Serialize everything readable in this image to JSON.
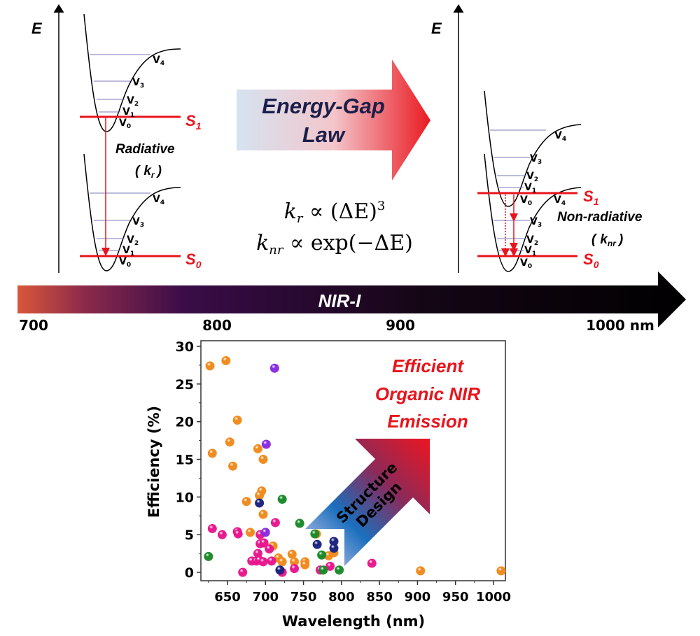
{
  "diagram": {
    "energy_axis_label": "E",
    "left_panel": {
      "levels": [
        "V",
        "V",
        "V",
        "V",
        "V"
      ],
      "level_subscripts": [
        "0",
        "1",
        "2",
        "3",
        "4"
      ],
      "s1_label": "S",
      "s1_sub": "1",
      "s0_label": "S",
      "s0_sub": "0",
      "process_label": "Radiative",
      "rate_open": "(",
      "rate_k": "k",
      "rate_sub": "r",
      "rate_close": ")"
    },
    "right_panel": {
      "s1_label": "S",
      "s1_sub": "1",
      "s0_label": "S",
      "s0_sub": "0",
      "process_label": "Non-radiative",
      "rate_open": "(",
      "rate_k": "k",
      "rate_sub": "nr",
      "rate_close": ")"
    },
    "big_arrow": {
      "line1": "Energy-Gap",
      "line2": "Law"
    },
    "equations": {
      "eq1": {
        "k": "k",
        "sub": "r",
        "rest": " ∝ (ΔE)",
        "sup": "3"
      },
      "eq2": {
        "k": "k",
        "sub": "nr",
        "rest": " ∝ exp(−ΔE)"
      }
    },
    "spectrum_bar": {
      "label": "NIR-I",
      "ticks": [
        "700",
        "800",
        "900",
        "1000 nm"
      ],
      "colors": [
        "#d9573a",
        "#3a0c48",
        "#000000"
      ]
    }
  },
  "chart_data": {
    "type": "scatter",
    "xlabel": "Wavelength (nm)",
    "ylabel": "Efficiency (%)",
    "xlim": [
      620,
      1020
    ],
    "ylim": [
      0,
      30
    ],
    "xticks": [
      650,
      700,
      750,
      800,
      850,
      900,
      950,
      1000
    ],
    "yticks": [
      0,
      5,
      10,
      15,
      20,
      25,
      30
    ],
    "grid": false,
    "annotation": {
      "line1": "Efficient",
      "line2": "Organic NIR",
      "line3": "Emission",
      "color": "#e8141c"
    },
    "arrow_label": {
      "line1": "Structure",
      "line2": "Design"
    },
    "series": [
      {
        "color": "#f08a1c",
        "points": [
          [
            627,
            27.4
          ],
          [
            648,
            28.1
          ],
          [
            630,
            15.8
          ],
          [
            653,
            17.3
          ],
          [
            657,
            14.1
          ],
          [
            663,
            20.2
          ],
          [
            675,
            9.4
          ],
          [
            680,
            5.3
          ],
          [
            690,
            16.4
          ],
          [
            697,
            15.0
          ],
          [
            695,
            10.8
          ],
          [
            692,
            10.2
          ],
          [
            697,
            7.7
          ],
          [
            710,
            3.5
          ],
          [
            717,
            1.9
          ],
          [
            722,
            1.4
          ],
          [
            735,
            2.4
          ],
          [
            738,
            1.4
          ],
          [
            752,
            1.4
          ],
          [
            752,
            1.0
          ],
          [
            767,
            5.1
          ],
          [
            783,
            2.2
          ],
          [
            790,
            2.6
          ],
          [
            904,
            0.2
          ],
          [
            1010,
            0.2
          ]
        ]
      },
      {
        "color": "#e8168c",
        "points": [
          [
            630,
            5.8
          ],
          [
            643,
            5.0
          ],
          [
            663,
            5.4
          ],
          [
            664,
            5.1
          ],
          [
            670,
            0.0
          ],
          [
            682,
            1.5
          ],
          [
            688,
            1.5
          ],
          [
            690,
            2.5
          ],
          [
            692,
            1.6
          ],
          [
            697,
            1.4
          ],
          [
            693,
            5.0
          ],
          [
            693,
            3.8
          ],
          [
            698,
            3.9
          ],
          [
            708,
            1.5
          ],
          [
            705,
            3.1
          ],
          [
            713,
            6.6
          ],
          [
            722,
            0.0
          ],
          [
            738,
            0.5
          ],
          [
            772,
            0.3
          ],
          [
            785,
            0.8
          ],
          [
            840,
            1.2
          ]
        ]
      },
      {
        "color": "#8a2be2",
        "points": [
          [
            712,
            27.1
          ],
          [
            701,
            17.0
          ],
          [
            700,
            5.3
          ]
        ]
      },
      {
        "color": "#1a237e",
        "points": [
          [
            692,
            9.2
          ],
          [
            719,
            0.3
          ],
          [
            768,
            3.7
          ],
          [
            790,
            4.1
          ],
          [
            790,
            3.2
          ]
        ]
      },
      {
        "color": "#1a8a2a",
        "points": [
          [
            625,
            2.1
          ],
          [
            722,
            9.7
          ],
          [
            745,
            6.5
          ],
          [
            765,
            5.1
          ],
          [
            774,
            2.3
          ],
          [
            776,
            0.3
          ],
          [
            797,
            0.3
          ]
        ]
      }
    ]
  }
}
